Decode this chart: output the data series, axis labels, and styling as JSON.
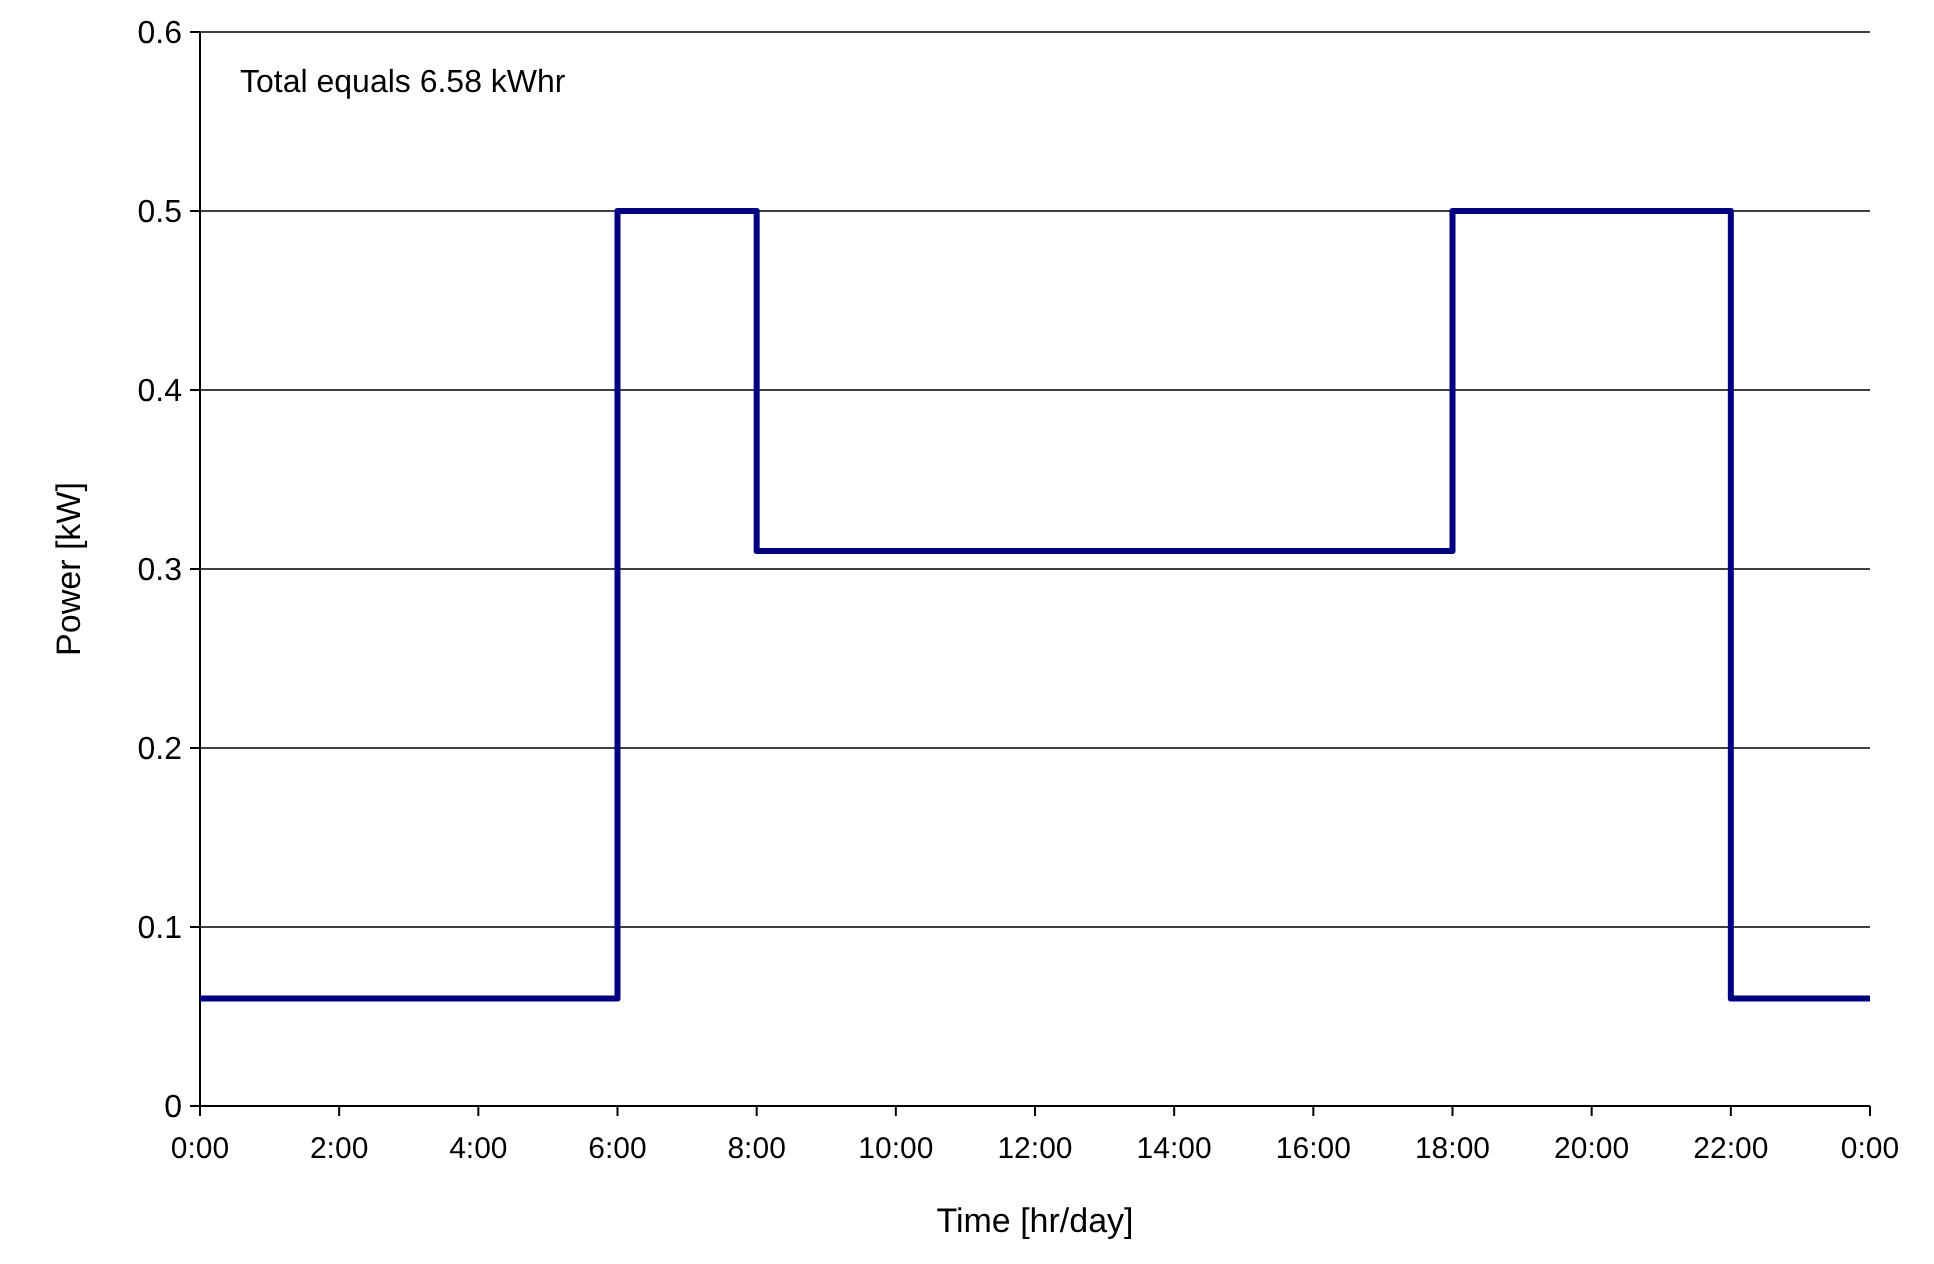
{
  "chart_data": {
    "type": "step",
    "xlabel": "Time [hr/day]",
    "ylabel": "Power [kW]",
    "x": [
      0,
      6,
      8,
      18,
      22,
      24
    ],
    "series": [
      {
        "color": "#000080",
        "values": [
          0.06,
          0.5,
          0.31,
          0.5,
          0.06,
          0.06
        ]
      }
    ],
    "xlim": [
      0,
      24
    ],
    "xticks": [
      {
        "value": 0,
        "label": "0:00"
      },
      {
        "value": 2,
        "label": "2:00"
      },
      {
        "value": 4,
        "label": "4:00"
      },
      {
        "value": 6,
        "label": "6:00"
      },
      {
        "value": 8,
        "label": "8:00"
      },
      {
        "value": 10,
        "label": "10:00"
      },
      {
        "value": 12,
        "label": "12:00"
      },
      {
        "value": 14,
        "label": "14:00"
      },
      {
        "value": 16,
        "label": "16:00"
      },
      {
        "value": 18,
        "label": "18:00"
      },
      {
        "value": 20,
        "label": "20:00"
      },
      {
        "value": 22,
        "label": "22:00"
      },
      {
        "value": 24,
        "label": "0:00"
      }
    ],
    "ylim": [
      0,
      0.6
    ],
    "yticks": [
      0,
      0.1,
      0.2,
      0.3,
      0.4,
      0.5,
      0.6
    ],
    "grid": "y",
    "annotations": [
      "Total equals 6.58 kWhr"
    ]
  }
}
